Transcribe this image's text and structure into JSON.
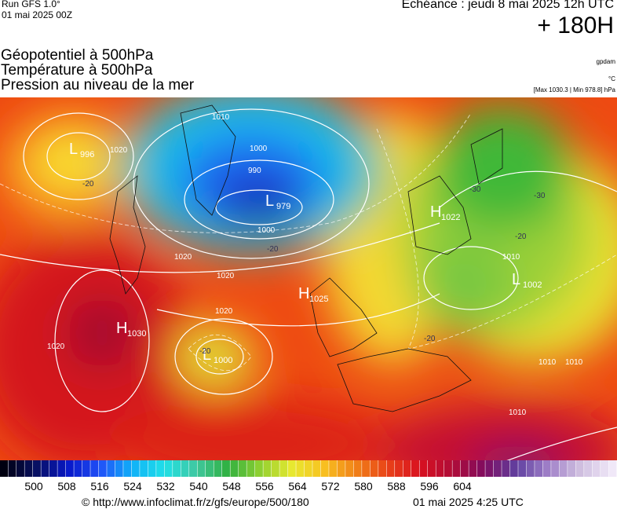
{
  "header": {
    "run": "Run GFS 1.0°",
    "run_date": "01 mai 2025 00Z",
    "valid": "Echéance : jeudi 8 mai 2025 12h UTC",
    "lead": "+ 180H"
  },
  "fields": [
    "Géopotentiel à 500hPa",
    "Température à 500hPa",
    "Pression au niveau de la mer"
  ],
  "units": {
    "gpdam": "gpdam",
    "temp": "°C",
    "pressure": "[Max 1030.3 | Min 978.8] hPa"
  },
  "centers": [
    {
      "kind": "L",
      "value": "996"
    },
    {
      "kind": "L",
      "value": "979"
    },
    {
      "kind": "H",
      "value": "1022"
    },
    {
      "kind": "L",
      "value": "1002"
    },
    {
      "kind": "H",
      "value": "1025"
    },
    {
      "kind": "H",
      "value": "1030"
    },
    {
      "kind": "L",
      "value": "1000"
    }
  ],
  "contour_labels": [
    "1010",
    "1000",
    "990",
    "1000",
    "1020",
    "1020",
    "1020",
    "1020",
    "1010",
    "1010",
    "1010",
    "1010",
    "1020",
    "-20",
    "-20",
    "-20",
    "-30",
    "-30",
    "-20",
    "-20"
  ],
  "colorbar": {
    "labels": [
      500,
      508,
      516,
      524,
      532,
      540,
      548,
      556,
      564,
      572,
      580,
      588,
      596,
      604
    ]
  },
  "footer": {
    "source": "© http://www.infoclimat.fr/z/gfs/europe/500/180",
    "generated": "01 mai 2025  4:25 UTC"
  }
}
